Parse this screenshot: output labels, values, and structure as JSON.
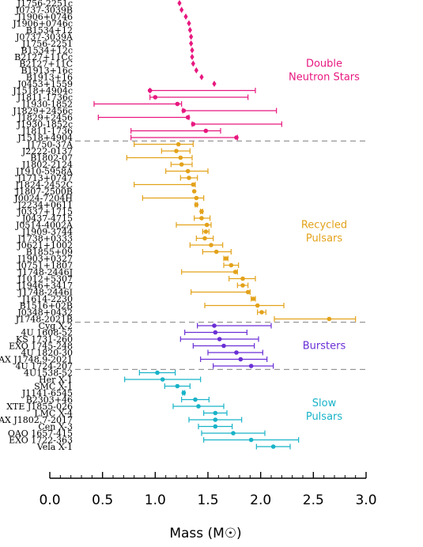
{
  "chart_data": {
    "type": "scatter",
    "xlabel": "Mass (M☉)",
    "xlim": [
      0.0,
      3.0
    ],
    "xticks": [
      "0.0",
      "0.5",
      "1.0",
      "1.5",
      "2.0",
      "2.5",
      "3.0"
    ],
    "grid": false,
    "groups": [
      {
        "name": "Double Neutron Stars",
        "color": "#e8177f",
        "label_lines": [
          "Double",
          "Neutron Stars"
        ]
      },
      {
        "name": "Recycled Pulsars",
        "color": "#e3a21a",
        "label_lines": [
          "Recycled",
          "Pulsars"
        ]
      },
      {
        "name": "Bursters",
        "color": "#6a2fd6",
        "label_lines": [
          "Bursters"
        ]
      },
      {
        "name": "Slow Pulsars",
        "color": "#18b3c8",
        "label_lines": [
          "Slow",
          "Pulsars"
        ]
      }
    ],
    "points": [
      {
        "name": "J1756-2251c",
        "group": 0,
        "mass": 1.23,
        "lo": 1.23,
        "hi": 1.23
      },
      {
        "name": "J0737-3039B",
        "group": 0,
        "mass": 1.25,
        "lo": 1.25,
        "hi": 1.25
      },
      {
        "name": "J1906+0746",
        "group": 0,
        "mass": 1.29,
        "lo": 1.29,
        "hi": 1.29
      },
      {
        "name": "J1906+0746c",
        "group": 0,
        "mass": 1.32,
        "lo": 1.32,
        "hi": 1.32
      },
      {
        "name": "B1534+12",
        "group": 0,
        "mass": 1.33,
        "lo": 1.33,
        "hi": 1.33
      },
      {
        "name": "J0737-3039A",
        "group": 0,
        "mass": 1.34,
        "lo": 1.34,
        "hi": 1.34
      },
      {
        "name": "J1756-2251",
        "group": 0,
        "mass": 1.34,
        "lo": 1.34,
        "hi": 1.34
      },
      {
        "name": "B1534+12c",
        "group": 0,
        "mass": 1.35,
        "lo": 1.35,
        "hi": 1.35
      },
      {
        "name": "B2127+11Cc",
        "group": 0,
        "mass": 1.35,
        "lo": 1.35,
        "hi": 1.35
      },
      {
        "name": "B2127+11C",
        "group": 0,
        "mass": 1.36,
        "lo": 1.36,
        "hi": 1.36
      },
      {
        "name": "B1913+16c",
        "group": 0,
        "mass": 1.39,
        "lo": 1.39,
        "hi": 1.39
      },
      {
        "name": "B1913+16",
        "group": 0,
        "mass": 1.44,
        "lo": 1.44,
        "hi": 1.44
      },
      {
        "name": "J0453+1559",
        "group": 0,
        "mass": 1.56,
        "lo": 1.56,
        "hi": 1.56
      },
      {
        "name": "J1518+4904c",
        "group": 0,
        "mass": 0.95,
        "lo": 0.95,
        "hi": 1.95
      },
      {
        "name": "J1811-1736c",
        "group": 0,
        "mass": 1.0,
        "lo": 0.95,
        "hi": 1.88
      },
      {
        "name": "J1930-1852",
        "group": 0,
        "mass": 1.21,
        "lo": 0.42,
        "hi": 1.25
      },
      {
        "name": "J1829+2456c",
        "group": 0,
        "mass": 1.27,
        "lo": 1.26,
        "hi": 2.15
      },
      {
        "name": "J1829+2456",
        "group": 0,
        "mass": 1.31,
        "lo": 0.46,
        "hi": 1.32
      },
      {
        "name": "J1930-1852c",
        "group": 0,
        "mass": 1.36,
        "lo": 1.35,
        "hi": 2.2
      },
      {
        "name": "J1811-1736",
        "group": 0,
        "mass": 1.48,
        "lo": 0.77,
        "hi": 1.62
      },
      {
        "name": "J1518+4904",
        "group": 0,
        "mass": 1.77,
        "lo": 0.77,
        "hi": 1.78
      },
      {
        "name": "J1750-37A",
        "group": 1,
        "mass": 1.22,
        "lo": 0.8,
        "hi": 1.36
      },
      {
        "name": "J2222-0137",
        "group": 1,
        "mass": 1.2,
        "lo": 1.06,
        "hi": 1.33
      },
      {
        "name": "B1802-07",
        "group": 1,
        "mass": 1.24,
        "lo": 0.73,
        "hi": 1.35
      },
      {
        "name": "J1802-2124",
        "group": 1,
        "mass": 1.25,
        "lo": 1.15,
        "hi": 1.35
      },
      {
        "name": "J1910-5958A",
        "group": 1,
        "mass": 1.31,
        "lo": 1.1,
        "hi": 1.5
      },
      {
        "name": "J1713+0747",
        "group": 1,
        "mass": 1.32,
        "lo": 1.24,
        "hi": 1.4
      },
      {
        "name": "J1824-2452C",
        "group": 1,
        "mass": 1.36,
        "lo": 0.8,
        "hi": 1.38
      },
      {
        "name": "J1807-2500B",
        "group": 1,
        "mass": 1.37,
        "lo": 1.36,
        "hi": 1.38
      },
      {
        "name": "J0024-7204H",
        "group": 1,
        "mass": 1.39,
        "lo": 0.88,
        "hi": 1.46
      },
      {
        "name": "J2234+0611",
        "group": 1,
        "mass": 1.39,
        "lo": 1.38,
        "hi": 1.4
      },
      {
        "name": "J0337+1715",
        "group": 1,
        "mass": 1.44,
        "lo": 1.43,
        "hi": 1.45
      },
      {
        "name": "J0437-4715",
        "group": 1,
        "mass": 1.44,
        "lo": 1.37,
        "hi": 1.52
      },
      {
        "name": "J0514-4002A",
        "group": 1,
        "mass": 1.49,
        "lo": 1.2,
        "hi": 1.53
      },
      {
        "name": "J1909-3744",
        "group": 1,
        "mass": 1.48,
        "lo": 1.45,
        "hi": 1.51
      },
      {
        "name": "J1738+0333",
        "group": 1,
        "mass": 1.47,
        "lo": 1.39,
        "hi": 1.55
      },
      {
        "name": "J0621+1002",
        "group": 1,
        "mass": 1.53,
        "lo": 1.33,
        "hi": 1.64
      },
      {
        "name": "B1855+09",
        "group": 1,
        "mass": 1.58,
        "lo": 1.45,
        "hi": 1.72
      },
      {
        "name": "J1903+0327",
        "group": 1,
        "mass": 1.67,
        "lo": 1.65,
        "hi": 1.69
      },
      {
        "name": "J0751+1807",
        "group": 1,
        "mass": 1.72,
        "lo": 1.65,
        "hi": 1.79
      },
      {
        "name": "J1748-2446J",
        "group": 1,
        "mass": 1.76,
        "lo": 1.25,
        "hi": 1.78
      },
      {
        "name": "J1012+5307",
        "group": 1,
        "mass": 1.83,
        "lo": 1.7,
        "hi": 1.95
      },
      {
        "name": "J1946+3417",
        "group": 1,
        "mass": 1.83,
        "lo": 1.78,
        "hi": 1.88
      },
      {
        "name": "J1748-2446I",
        "group": 1,
        "mass": 1.88,
        "lo": 1.34,
        "hi": 1.9
      },
      {
        "name": "J1614-2230",
        "group": 1,
        "mass": 1.93,
        "lo": 1.91,
        "hi": 1.95
      },
      {
        "name": "B1516+02B",
        "group": 1,
        "mass": 1.97,
        "lo": 1.47,
        "hi": 2.22
      },
      {
        "name": "J0348+0432",
        "group": 1,
        "mass": 2.01,
        "lo": 1.97,
        "hi": 2.05
      },
      {
        "name": "J1748-2021B",
        "group": 1,
        "mass": 2.65,
        "lo": 2.13,
        "hi": 2.9
      },
      {
        "name": "Cyg X-2",
        "group": 2,
        "mass": 1.56,
        "lo": 1.4,
        "hi": 2.1
      },
      {
        "name": "4U 1608-52",
        "group": 2,
        "mass": 1.57,
        "lo": 1.28,
        "hi": 1.87
      },
      {
        "name": "KS 1731-260",
        "group": 2,
        "mass": 1.61,
        "lo": 1.24,
        "hi": 1.98
      },
      {
        "name": "EXO 1745-248",
        "group": 2,
        "mass": 1.65,
        "lo": 1.36,
        "hi": 1.94
      },
      {
        "name": "4U 1820-30",
        "group": 2,
        "mass": 1.77,
        "lo": 1.5,
        "hi": 2.02
      },
      {
        "name": "SAX J1748.9-2021",
        "group": 2,
        "mass": 1.81,
        "lo": 1.43,
        "hi": 2.06
      },
      {
        "name": "4U 1724-207",
        "group": 2,
        "mass": 1.91,
        "lo": 1.55,
        "hi": 2.12
      },
      {
        "name": "4U1538-52",
        "group": 3,
        "mass": 1.02,
        "lo": 0.85,
        "hi": 1.19
      },
      {
        "name": "Her X-1",
        "group": 3,
        "mass": 1.07,
        "lo": 0.71,
        "hi": 1.43
      },
      {
        "name": "SMC X-1",
        "group": 3,
        "mass": 1.21,
        "lo": 1.09,
        "hi": 1.33
      },
      {
        "name": "J1141-6545",
        "group": 3,
        "mass": 1.27,
        "lo": 1.26,
        "hi": 1.28
      },
      {
        "name": "B2303+46",
        "group": 3,
        "mass": 1.38,
        "lo": 1.25,
        "hi": 1.51
      },
      {
        "name": "XTE J1855-026",
        "group": 3,
        "mass": 1.41,
        "lo": 1.17,
        "hi": 1.65
      },
      {
        "name": "LMC X-4",
        "group": 3,
        "mass": 1.57,
        "lo": 1.46,
        "hi": 1.68
      },
      {
        "name": "SAX J1802.7-2017",
        "group": 3,
        "mass": 1.57,
        "lo": 1.32,
        "hi": 1.82
      },
      {
        "name": "Cen X-3",
        "group": 3,
        "mass": 1.57,
        "lo": 1.41,
        "hi": 1.73
      },
      {
        "name": "OAO 1657-415",
        "group": 3,
        "mass": 1.74,
        "lo": 1.44,
        "hi": 2.04
      },
      {
        "name": "EXO 1722-363",
        "group": 3,
        "mass": 1.91,
        "lo": 1.46,
        "hi": 2.36
      },
      {
        "name": "Vela X-1",
        "group": 3,
        "mass": 2.12,
        "lo": 1.96,
        "hi": 2.28
      }
    ]
  }
}
